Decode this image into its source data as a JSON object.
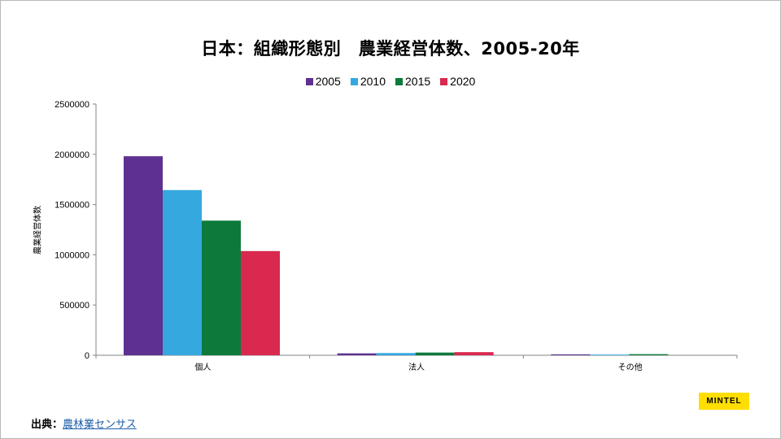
{
  "source": {
    "prefix": "出典：",
    "link_text": "農林業センサス"
  },
  "logo": {
    "text": "MINTEL",
    "color": "#ffde00"
  },
  "chart_data": {
    "type": "bar",
    "title": "日本：組織形態別　農業経営体数、2005-20年",
    "xlabel": "",
    "ylabel": "農業経営体数",
    "categories": [
      "個人",
      "法人",
      "その他"
    ],
    "series": [
      {
        "name": "2005",
        "color": "#5e3191",
        "values": [
          1981000,
          19000,
          9000
        ]
      },
      {
        "name": "2010",
        "color": "#35a8e0",
        "values": [
          1644000,
          22000,
          7000
        ]
      },
      {
        "name": "2015",
        "color": "#0c7a3b",
        "values": [
          1340000,
          27000,
          11000
        ]
      },
      {
        "name": "2020",
        "color": "#d9294f",
        "values": [
          1037000,
          31000,
          0
        ]
      }
    ],
    "yticks": [
      "0",
      "500000",
      "1000000",
      "1500000",
      "2000000",
      "2500000"
    ],
    "ylim": [
      0,
      2500000
    ],
    "grid": false,
    "legend_position": "top"
  }
}
